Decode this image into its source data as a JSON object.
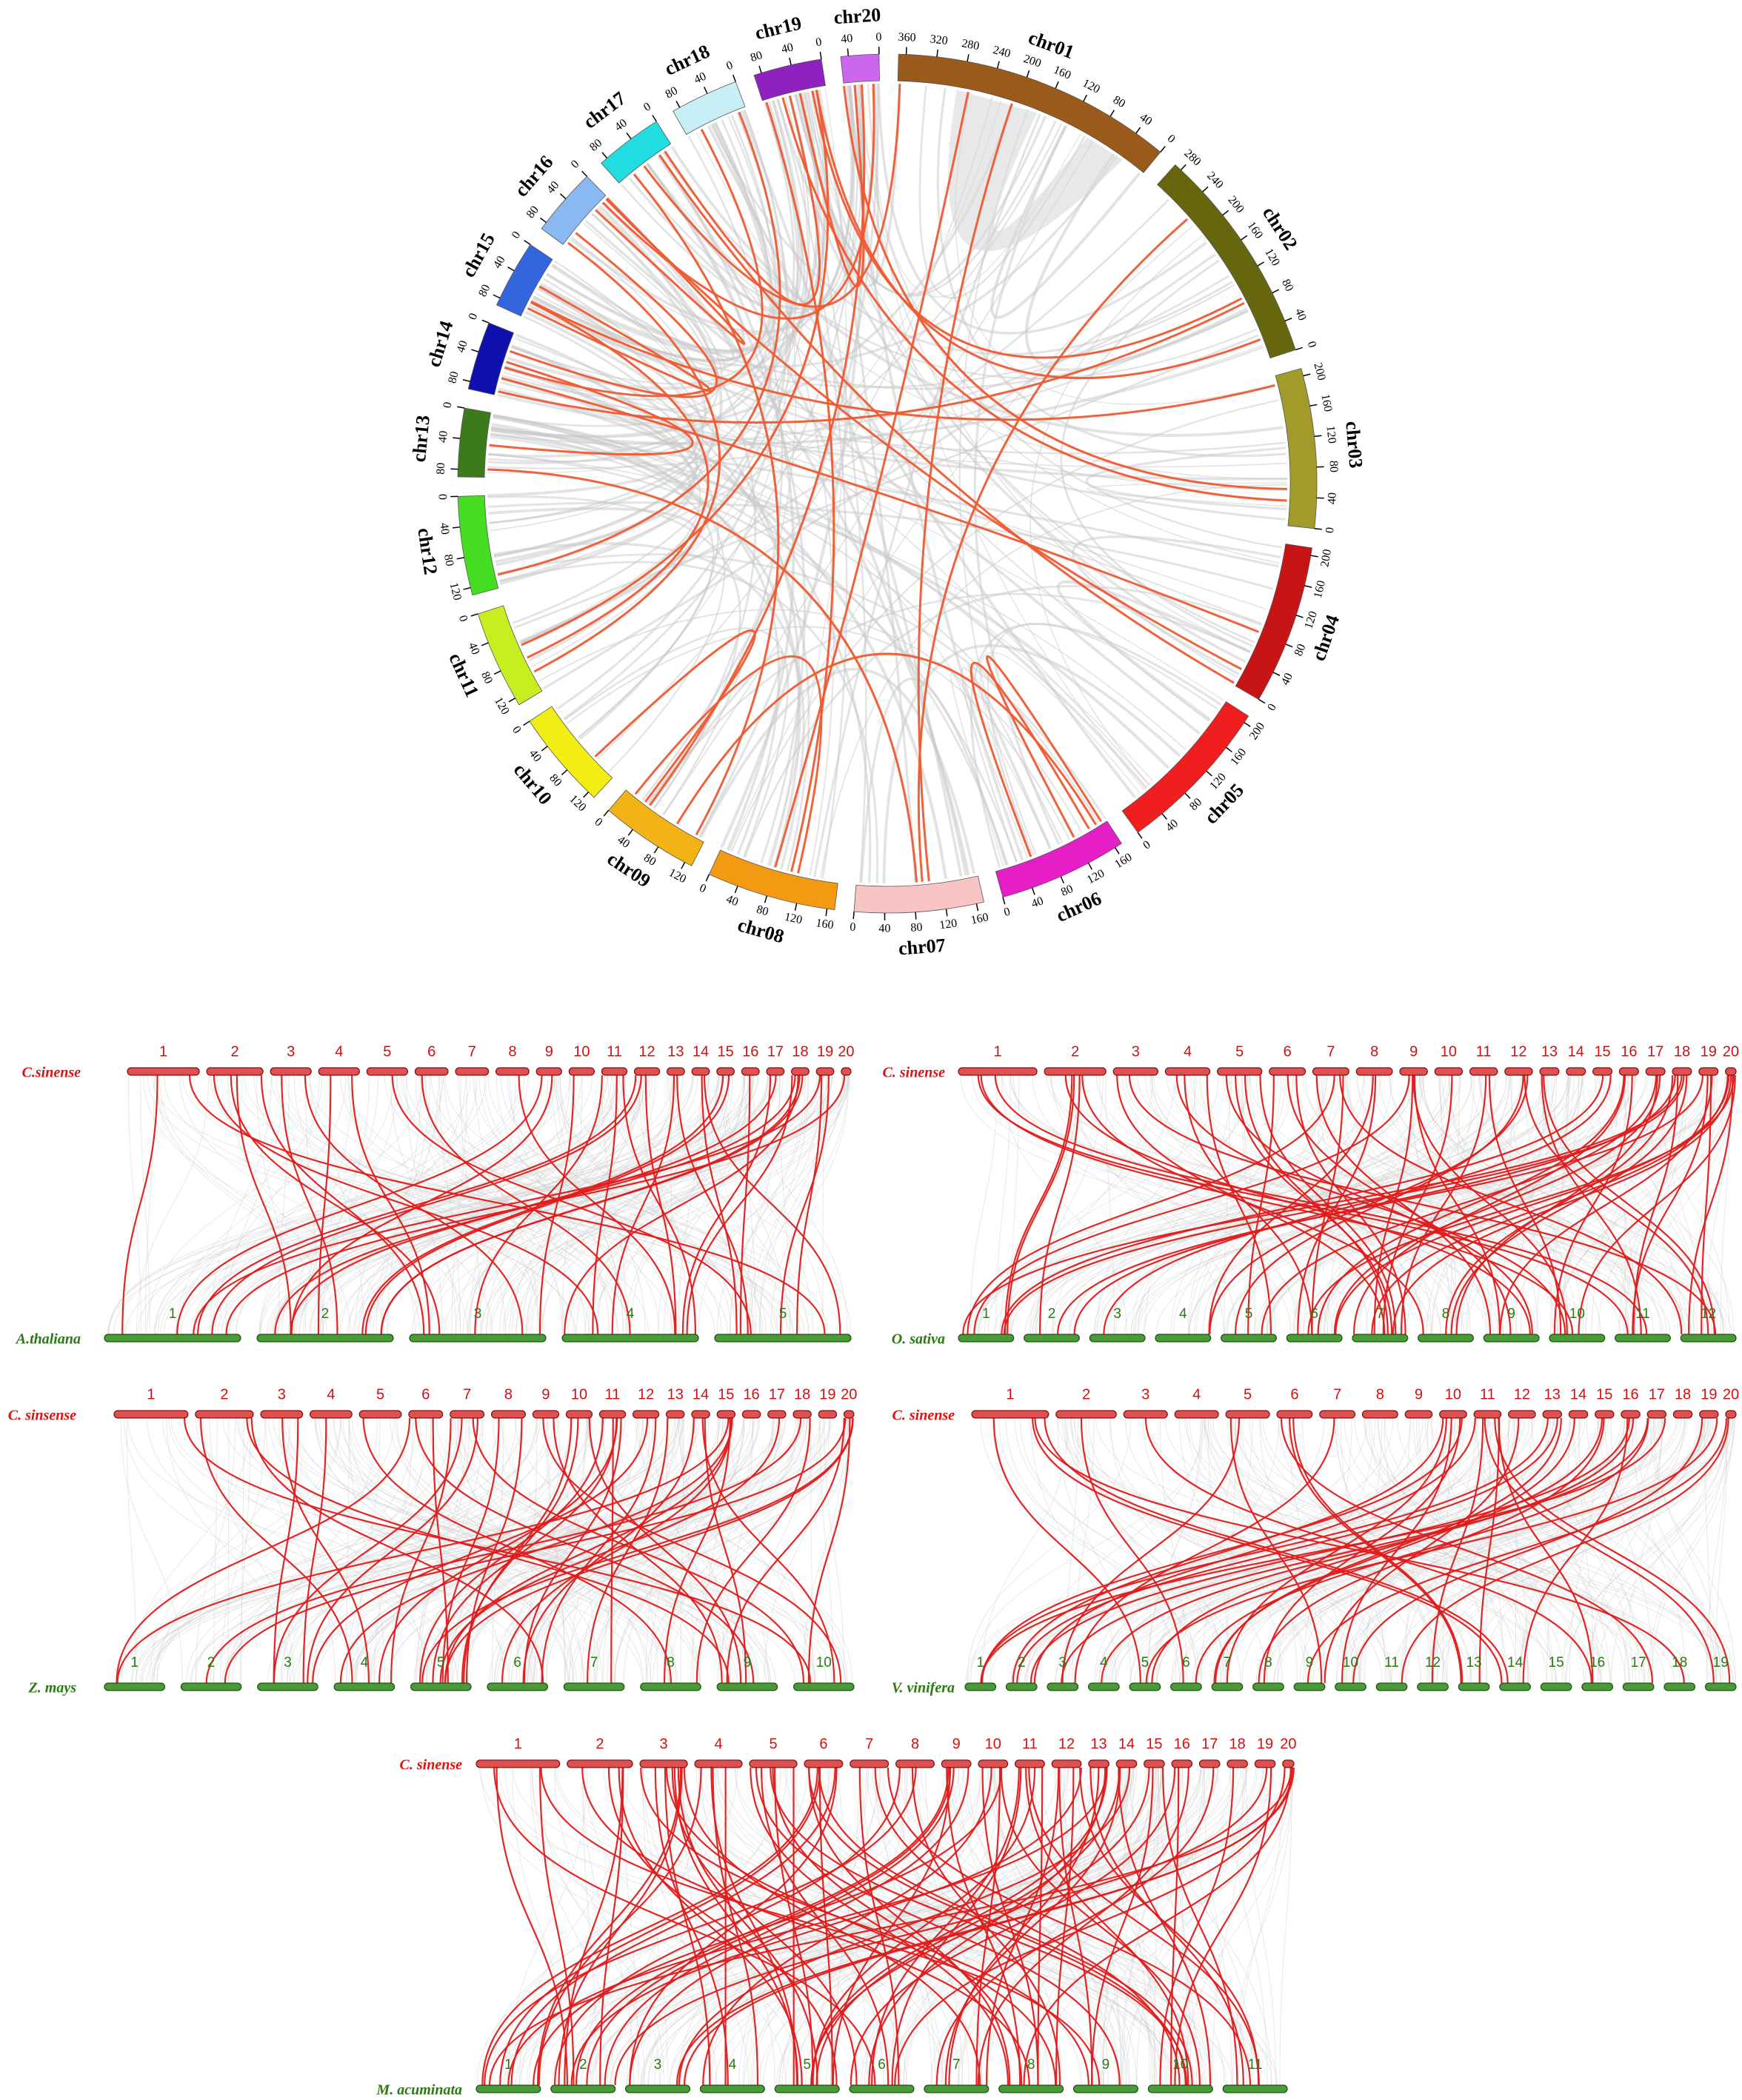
{
  "circos": {
    "chromosomes": [
      {
        "label": "chr01",
        "color": "#9a5a1a",
        "ticks": [
          0,
          40,
          80,
          120,
          160,
          200,
          240,
          280,
          320,
          360
        ]
      },
      {
        "label": "chr02",
        "color": "#66660f",
        "ticks": [
          0,
          40,
          80,
          120,
          160,
          200,
          240,
          280
        ]
      },
      {
        "label": "chr03",
        "color": "#a39a2c",
        "ticks": [
          0,
          40,
          80,
          120,
          160,
          200
        ]
      },
      {
        "label": "chr04",
        "color": "#c81414",
        "ticks": [
          0,
          40,
          80,
          120,
          160,
          200
        ]
      },
      {
        "label": "chr05",
        "color": "#f01e1e",
        "ticks": [
          0,
          40,
          80,
          120,
          160,
          200
        ]
      },
      {
        "label": "chr06",
        "color": "#e61ec8",
        "ticks": [
          0,
          40,
          80,
          120,
          160
        ]
      },
      {
        "label": "chr07",
        "color": "#f8c4c4",
        "ticks": [
          0,
          40,
          80,
          120,
          160
        ]
      },
      {
        "label": "chr08",
        "color": "#f39a12",
        "ticks": [
          0,
          40,
          80,
          120,
          160
        ]
      },
      {
        "label": "chr09",
        "color": "#f2b414",
        "ticks": [
          0,
          40,
          80,
          120
        ]
      },
      {
        "label": "chr10",
        "color": "#f2ee14",
        "ticks": [
          0,
          40,
          80,
          120
        ]
      },
      {
        "label": "chr11",
        "color": "#c8ee22",
        "ticks": [
          0,
          40,
          80,
          120
        ]
      },
      {
        "label": "chr12",
        "color": "#44dd22",
        "ticks": [
          0,
          40,
          80,
          120
        ]
      },
      {
        "label": "chr13",
        "color": "#3c7a1a",
        "ticks": [
          0,
          40,
          80
        ]
      },
      {
        "label": "chr14",
        "color": "#1010b0",
        "ticks": [
          0,
          40,
          80
        ]
      },
      {
        "label": "chr15",
        "color": "#3366dd",
        "ticks": [
          0,
          40,
          80
        ]
      },
      {
        "label": "chr16",
        "color": "#8ab8f0",
        "ticks": [
          0,
          40,
          80
        ]
      },
      {
        "label": "chr17",
        "color": "#22dde0",
        "ticks": [
          0,
          40,
          80
        ]
      },
      {
        "label": "chr18",
        "color": "#c8eef6",
        "ticks": [
          0,
          40,
          80
        ]
      },
      {
        "label": "chr19",
        "color": "#9020c0",
        "ticks": [
          0,
          40,
          80
        ]
      },
      {
        "label": "chr20",
        "color": "#cc66ee",
        "ticks": [
          0,
          40
        ]
      }
    ]
  },
  "synteny": [
    {
      "top_species": "C.sinense",
      "top_chromosomes": [
        1,
        2,
        3,
        4,
        5,
        6,
        7,
        8,
        9,
        10,
        11,
        12,
        13,
        14,
        15,
        16,
        17,
        18,
        19,
        20
      ],
      "bottom_species": "A.thaliana",
      "bottom_chromosomes": [
        1,
        2,
        3,
        4,
        5
      ]
    },
    {
      "top_species": "C. sinense",
      "top_chromosomes": [
        1,
        2,
        3,
        4,
        5,
        6,
        7,
        8,
        9,
        10,
        11,
        12,
        13,
        14,
        15,
        16,
        17,
        18,
        19,
        20
      ],
      "bottom_species": "O. sativa",
      "bottom_chromosomes": [
        1,
        2,
        3,
        4,
        5,
        6,
        7,
        8,
        9,
        10,
        11,
        12
      ]
    },
    {
      "top_species": "C. sinsense",
      "top_chromosomes": [
        1,
        2,
        3,
        4,
        5,
        6,
        7,
        8,
        9,
        10,
        11,
        12,
        13,
        14,
        15,
        16,
        17,
        18,
        19,
        20
      ],
      "bottom_species": "Z. mays",
      "bottom_chromosomes": [
        1,
        2,
        3,
        4,
        5,
        6,
        7,
        8,
        9,
        10
      ]
    },
    {
      "top_species": "C. sinense",
      "top_chromosomes": [
        1,
        2,
        3,
        4,
        5,
        6,
        7,
        8,
        9,
        10,
        11,
        12,
        13,
        14,
        15,
        16,
        17,
        18,
        19,
        20
      ],
      "bottom_species": "V. vinifera",
      "bottom_chromosomes": [
        1,
        2,
        3,
        4,
        5,
        6,
        7,
        8,
        9,
        10,
        11,
        12,
        13,
        14,
        15,
        16,
        17,
        18,
        19
      ]
    },
    {
      "top_species": "C. sinense",
      "top_chromosomes": [
        1,
        2,
        3,
        4,
        5,
        6,
        7,
        8,
        9,
        10,
        11,
        12,
        13,
        14,
        15,
        16,
        17,
        18,
        19,
        20
      ],
      "bottom_species": "M. acuminata",
      "bottom_chromosomes": [
        1,
        2,
        3,
        4,
        5,
        6,
        7,
        8,
        9,
        10,
        11
      ]
    }
  ]
}
